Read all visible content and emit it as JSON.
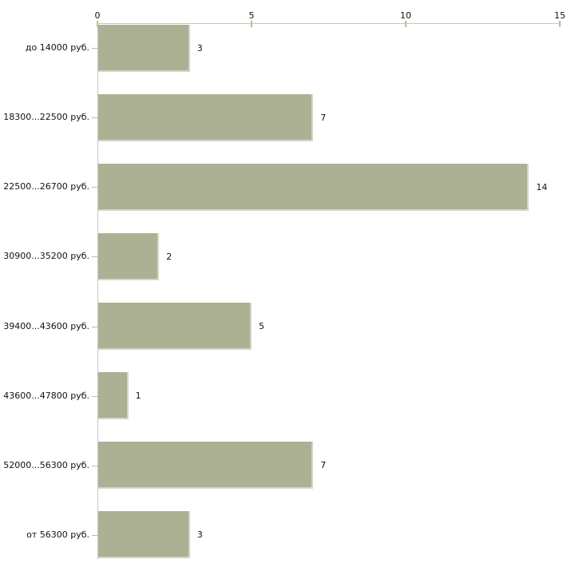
{
  "chart_data": {
    "type": "bar",
    "orientation": "horizontal",
    "title": "",
    "xlabel": "",
    "ylabel": "",
    "categories": [
      "до 14000 руб.",
      "18300...22500 руб.",
      "22500...26700 руб.",
      "30900...35200 руб.",
      "39400...43600 руб.",
      "43600...47800 руб.",
      "52000...56300 руб.",
      "от 56300 руб."
    ],
    "values": [
      3,
      7,
      14,
      2,
      5,
      1,
      7,
      3
    ],
    "value_labels": [
      "3",
      "7",
      "14",
      "2",
      "5",
      "1",
      "7",
      "3"
    ],
    "x_ticks": [
      "0",
      "5",
      "10",
      "15"
    ],
    "x_tick_values": [
      0,
      5,
      10,
      15
    ],
    "xlim": [
      0,
      15
    ],
    "grid": false,
    "legend": false,
    "axis_position": "top",
    "colors": {
      "bar_fill": "#acb194",
      "bar_edge": "#d4d6c8",
      "axis_line": "#c6c6c6",
      "tick_mark": "#c6bc8a",
      "text": "#111111",
      "background": "#ffffff"
    }
  }
}
